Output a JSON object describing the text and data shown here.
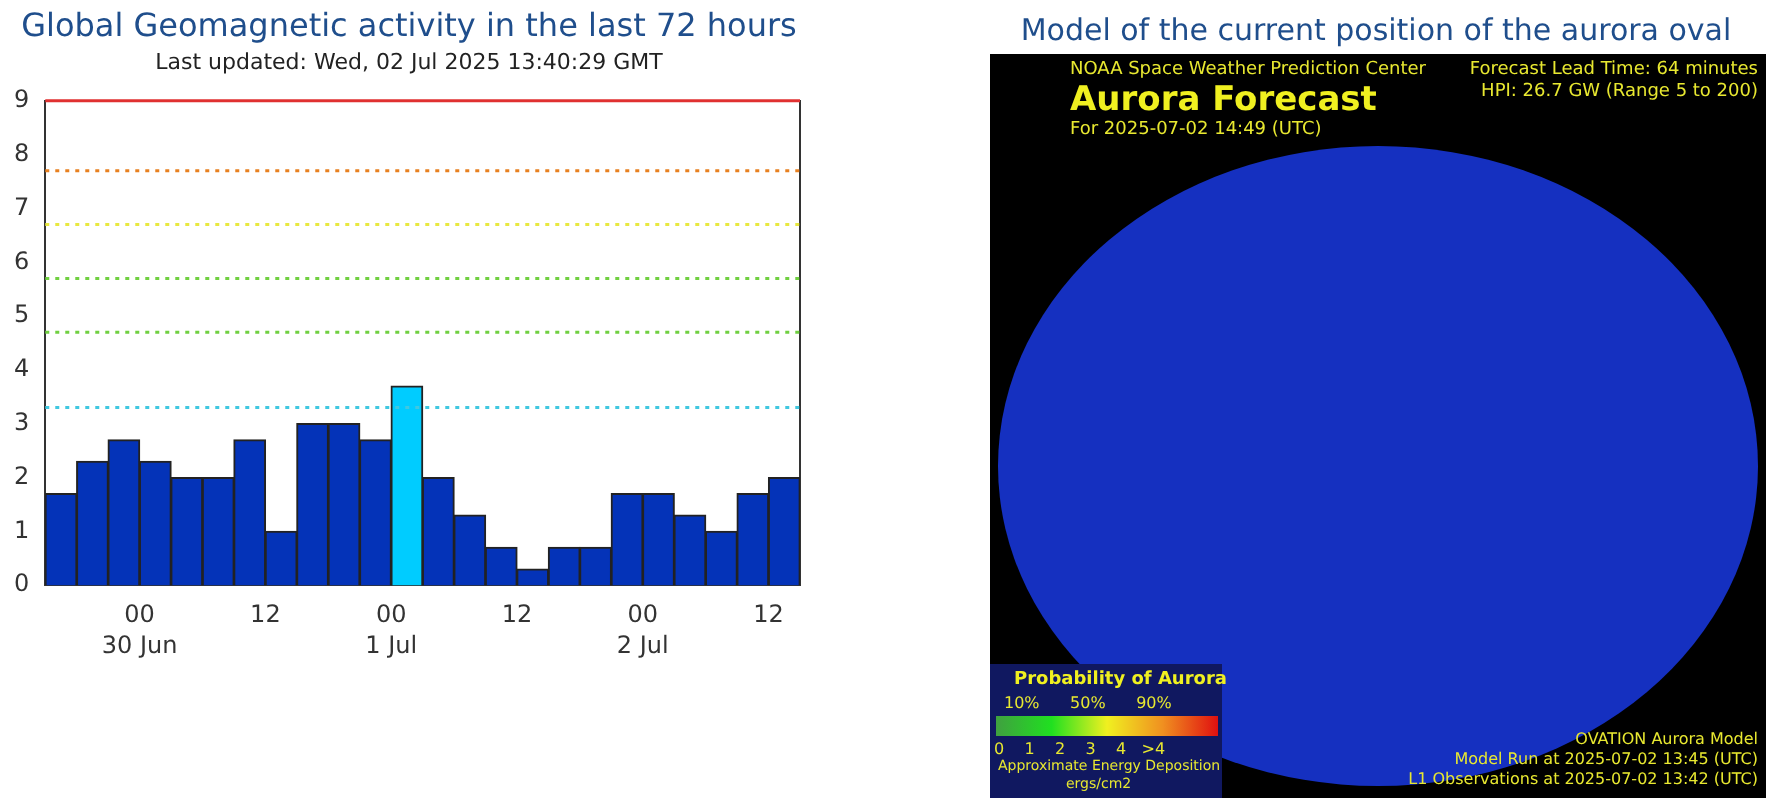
{
  "chart_data": [
    {
      "type": "bar",
      "title": "Global Geomagnetic activity in the last 72 hours",
      "subtitle": "Last updated: Wed, 02 Jul 2025 13:40:29 GMT",
      "x": [
        "2025-06-29T16:30",
        "2025-06-29T19:30",
        "2025-06-29T22:30",
        "2025-06-30T01:30",
        "2025-06-30T04:30",
        "2025-06-30T07:30",
        "2025-06-30T10:30",
        "2025-06-30T13:30",
        "2025-06-30T16:30",
        "2025-06-30T19:30",
        "2025-06-30T22:30",
        "2025-07-01T01:30",
        "2025-07-01T04:30",
        "2025-07-01T07:30",
        "2025-07-01T10:30",
        "2025-07-01T13:30",
        "2025-07-01T16:30",
        "2025-07-01T19:30",
        "2025-07-01T22:30",
        "2025-07-02T01:30",
        "2025-07-02T04:30",
        "2025-07-02T07:30",
        "2025-07-02T10:30",
        "2025-07-02T13:30"
      ],
      "values": [
        1.7,
        2.3,
        2.7,
        2.3,
        2.0,
        2.0,
        2.7,
        1.0,
        3.0,
        3.0,
        2.7,
        3.7,
        2.0,
        1.3,
        0.7,
        0.3,
        0.7,
        0.7,
        1.7,
        1.7,
        1.3,
        1.0,
        1.7,
        2.0
      ],
      "colors": [
        "#0433b8",
        "#0433b8",
        "#0433b8",
        "#0433b8",
        "#0433b8",
        "#0433b8",
        "#0433b8",
        "#0433b8",
        "#0433b8",
        "#0433b8",
        "#0433b8",
        "#00ccff",
        "#0433b8",
        "#0433b8",
        "#0433b8",
        "#0433b8",
        "#0433b8",
        "#0433b8",
        "#0433b8",
        "#0433b8",
        "#0433b8",
        "#0433b8",
        "#0433b8",
        "#0433b8"
      ],
      "xlim": [
        "2025-06-29T15:00",
        "2025-07-02T15:00"
      ],
      "xticks": [
        {
          "value": "2025-06-30T00:00",
          "label": "00"
        },
        {
          "value": "2025-06-30T12:00",
          "label": "12"
        },
        {
          "value": "2025-07-01T00:00",
          "label": "00"
        },
        {
          "value": "2025-07-01T12:00",
          "label": "12"
        },
        {
          "value": "2025-07-02T00:00",
          "label": "00"
        },
        {
          "value": "2025-07-02T12:00",
          "label": "12"
        }
      ],
      "ylim": [
        0,
        9
      ],
      "yticks": [
        0,
        1,
        2,
        3,
        4,
        5,
        6,
        7,
        8,
        9
      ],
      "grid": false,
      "legend": false,
      "ref_lines": [
        {
          "axis": "y",
          "value": 9,
          "color": "#e03030",
          "line_style": "solid"
        },
        {
          "axis": "y",
          "value": 7.7,
          "color": "#e88020",
          "line_style": "dotted"
        },
        {
          "axis": "y",
          "value": 6.7,
          "color": "#e8e840",
          "line_style": "dotted"
        },
        {
          "axis": "y",
          "value": 5.7,
          "color": "#70d040",
          "line_style": "dotted"
        },
        {
          "axis": "y",
          "value": 4.7,
          "color": "#70d040",
          "line_style": "dotted"
        },
        {
          "axis": "y",
          "value": 3.3,
          "color": "#40c8e0",
          "line_style": "dotted"
        }
      ],
      "annotations": [
        "30 Jun",
        "1 Jul",
        "2 Jul"
      ]
    },
    {
      "type": "other",
      "title": "Model of the current position of the aurora oval",
      "annotations": [
        "NOAA Space Weather Prediction Center",
        "Aurora Forecast",
        "For 2025-07-02 14:49 (UTC)",
        "Forecast Lead Time:  64 minutes",
        "HPI:  26.7 GW (Range 5 to 200)",
        "Probability of Aurora",
        "10%      50%      90%",
        "0    1    2    3    4   >4",
        "Approximate Energy Deposition",
        "ergs/cm2",
        "OVATION Aurora Model",
        "Model Run at 2025-07-02 13:45 (UTC)",
        "L1 Observations at 2025-07-02 13:42 (UTC)"
      ]
    }
  ]
}
